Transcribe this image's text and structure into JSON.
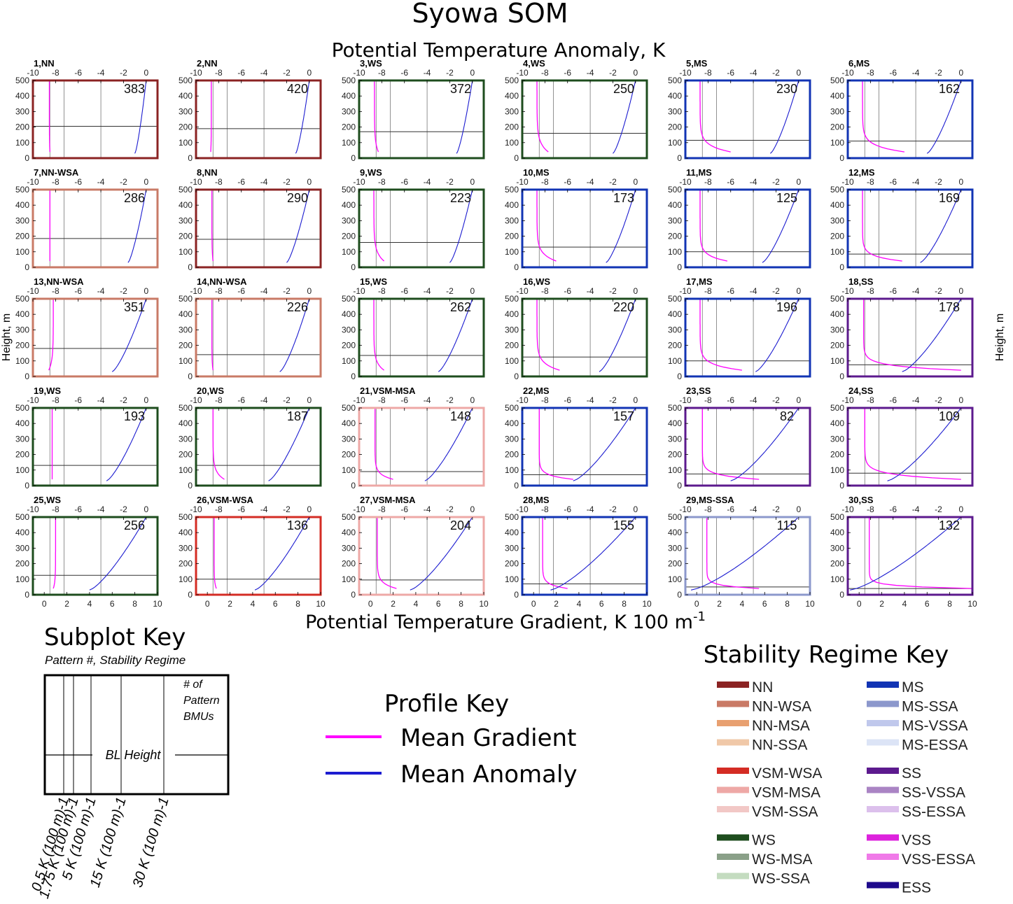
{
  "title": "Syowa SOM",
  "top_axis_title": "Potential Temperature Anomaly, K",
  "bottom_axis_title": "Potential Temperature Gradient, K 100 m",
  "bottom_axis_exponent": "-1",
  "left_axis_title": "Height, m",
  "right_axis_title": "Height, m",
  "colors": {
    "NN": "#8b2323",
    "NN-WSA": "#c97a66",
    "VSM-WSA": "#d42c24",
    "VSM-MSA": "#eea8a6",
    "WS": "#1e4d1e",
    "MS": "#1234b4",
    "MS-SSA": "#8c98cc",
    "SS": "#5c1a8e",
    "gradient": "#ff00ff",
    "anomaly": "#1c1cd0"
  },
  "chart_data": {
    "type": "line",
    "xlabel_top": "Potential Temperature Anomaly, K",
    "xlabel_bottom": "Potential Temperature Gradient, K 100 m-1",
    "ylabel": "Height, m",
    "ylim": [
      0,
      500
    ],
    "yticks": [
      "0",
      "100",
      "200",
      "300",
      "400",
      "500"
    ],
    "top_xlim": [
      -10,
      1
    ],
    "top_xticks": [
      "-10",
      "-8",
      "-6",
      "-4",
      "-2",
      "0"
    ],
    "bottom_xlim": [
      -1,
      10
    ],
    "bottom_xticks": [
      "0",
      "2",
      "4",
      "6",
      "8",
      "10"
    ],
    "reference_gradients": [
      0.5,
      1.75,
      5
    ],
    "panels": [
      {
        "label": "1,NN",
        "regime": "NN",
        "count": "383",
        "bl": 205,
        "grad_surface": 0.5,
        "grad_aloft": 0.45,
        "anom_surface": -1.0,
        "anom_top": 0.0
      },
      {
        "label": "2,NN",
        "regime": "NN",
        "count": "420",
        "bl": 190,
        "grad_surface": 0.3,
        "grad_aloft": 0.35,
        "anom_surface": -1.2,
        "anom_top": 0.0
      },
      {
        "label": "3,WS",
        "regime": "WS",
        "count": "372",
        "bl": 170,
        "grad_surface": 0.7,
        "grad_aloft": 0.35,
        "anom_surface": -1.4,
        "anom_top": 0.0
      },
      {
        "label": "4,WS",
        "regime": "WS",
        "count": "250",
        "bl": 160,
        "grad_surface": 1.3,
        "grad_aloft": 0.3,
        "anom_surface": -2.0,
        "anom_top": 0.0
      },
      {
        "label": "5,MS",
        "regime": "MS",
        "count": "230",
        "bl": 115,
        "grad_surface": 3.0,
        "grad_aloft": 0.3,
        "anom_surface": -2.5,
        "anom_top": 0.0
      },
      {
        "label": "6,MS",
        "regime": "MS",
        "count": "162",
        "bl": 110,
        "grad_surface": 4.0,
        "grad_aloft": 0.3,
        "anom_surface": -3.0,
        "anom_top": 0.0
      },
      {
        "label": "7,NN-WSA",
        "regime": "NN-WSA",
        "count": "286",
        "bl": 185,
        "grad_surface": 0.5,
        "grad_aloft": 0.5,
        "anom_surface": -1.6,
        "anom_top": 0.0
      },
      {
        "label": "8,NN",
        "regime": "NN",
        "count": "290",
        "bl": 180,
        "grad_surface": 0.5,
        "grad_aloft": 0.4,
        "anom_surface": -2.0,
        "anom_top": 0.0
      },
      {
        "label": "9,WS",
        "regime": "WS",
        "count": "223",
        "bl": 160,
        "grad_surface": 1.2,
        "grad_aloft": 0.3,
        "anom_surface": -2.0,
        "anom_top": 0.0
      },
      {
        "label": "10,MS",
        "regime": "MS",
        "count": "173",
        "bl": 130,
        "grad_surface": 2.0,
        "grad_aloft": 0.3,
        "anom_surface": -2.6,
        "anom_top": 0.0
      },
      {
        "label": "11,MS",
        "regime": "MS",
        "count": "125",
        "bl": 100,
        "grad_surface": 2.7,
        "grad_aloft": 0.3,
        "anom_surface": -3.2,
        "anom_top": 0.0
      },
      {
        "label": "12,MS",
        "regime": "MS",
        "count": "169",
        "bl": 85,
        "grad_surface": 3.8,
        "grad_aloft": 0.3,
        "anom_surface": -3.6,
        "anom_top": 0.0
      },
      {
        "label": "13,NN-WSA",
        "regime": "NN-WSA",
        "count": "351",
        "bl": 180,
        "grad_surface": 0.4,
        "grad_aloft": 0.8,
        "anom_surface": -3.0,
        "anom_top": 0.0
      },
      {
        "label": "14,NN-WSA",
        "regime": "NN-WSA",
        "count": "226",
        "bl": 140,
        "grad_surface": 0.5,
        "grad_aloft": 0.4,
        "anom_surface": -2.6,
        "anom_top": 0.0
      },
      {
        "label": "15,WS",
        "regime": "WS",
        "count": "262",
        "bl": 135,
        "grad_surface": 1.2,
        "grad_aloft": 0.3,
        "anom_surface": -3.0,
        "anom_top": 0.0
      },
      {
        "label": "16,WS",
        "regime": "WS",
        "count": "220",
        "bl": 125,
        "grad_surface": 2.3,
        "grad_aloft": 0.3,
        "anom_surface": -3.2,
        "anom_top": 0.0
      },
      {
        "label": "17,MS",
        "regime": "MS",
        "count": "196",
        "bl": 100,
        "grad_surface": 4.0,
        "grad_aloft": 0.3,
        "anom_surface": -3.8,
        "anom_top": 0.0
      },
      {
        "label": "18,SS",
        "regime": "SS",
        "count": "178",
        "bl": 75,
        "grad_surface": 9.0,
        "grad_aloft": 0.4,
        "anom_surface": -5.2,
        "anom_top": 0.0
      },
      {
        "label": "19,WS",
        "regime": "WS",
        "count": "193",
        "bl": 130,
        "grad_surface": 0.7,
        "grad_aloft": 0.7,
        "anom_surface": -3.5,
        "anom_top": 0.0
      },
      {
        "label": "20,WS",
        "regime": "WS",
        "count": "187",
        "bl": 130,
        "grad_surface": 1.5,
        "grad_aloft": 0.5,
        "anom_surface": -3.6,
        "anom_top": 0.0
      },
      {
        "label": "21,VSM-MSA",
        "regime": "VSM-MSA",
        "count": "148",
        "bl": 90,
        "grad_surface": 2.0,
        "grad_aloft": 0.4,
        "anom_surface": -4.2,
        "anom_top": 0.0
      },
      {
        "label": "22,MS",
        "regime": "MS",
        "count": "157",
        "bl": 70,
        "grad_surface": 3.5,
        "grad_aloft": 0.5,
        "anom_surface": -5.5,
        "anom_top": 0.0
      },
      {
        "label": "23,SS",
        "regime": "SS",
        "count": "82",
        "bl": 75,
        "grad_surface": 5.5,
        "grad_aloft": 0.5,
        "anom_surface": -6.0,
        "anom_top": 0.0
      },
      {
        "label": "24,SS",
        "regime": "SS",
        "count": "109",
        "bl": 80,
        "grad_surface": 9.0,
        "grad_aloft": 0.5,
        "anom_surface": -6.5,
        "anom_top": 0.0
      },
      {
        "label": "25,WS",
        "regime": "WS",
        "count": "256",
        "bl": 125,
        "grad_surface": 0.8,
        "grad_aloft": 1.0,
        "anom_surface": -5.0,
        "anom_top": 0.0
      },
      {
        "label": "26,VSM-WSA",
        "regime": "VSM-WSA",
        "count": "136",
        "bl": 100,
        "grad_surface": 0.8,
        "grad_aloft": 0.6,
        "anom_surface": -4.8,
        "anom_top": 0.0
      },
      {
        "label": "27,VSM-MSA",
        "regime": "VSM-MSA",
        "count": "204",
        "bl": 95,
        "grad_surface": 2.3,
        "grad_aloft": 0.6,
        "anom_surface": -5.5,
        "anom_top": 0.0
      },
      {
        "label": "28,MS",
        "regime": "MS",
        "count": "155",
        "bl": 70,
        "grad_surface": 3.0,
        "grad_aloft": 0.8,
        "anom_surface": -7.5,
        "anom_top": 0.0
      },
      {
        "label": "29,MS-SSA",
        "regime": "MS-SSA",
        "count": "115",
        "bl": 50,
        "grad_surface": 5.5,
        "grad_aloft": 0.9,
        "anom_surface": -9.5,
        "anom_top": 0.0
      },
      {
        "label": "30,SS",
        "regime": "SS",
        "count": "132",
        "bl": 40,
        "grad_surface": 10.0,
        "grad_aloft": 0.9,
        "anom_surface": -9.8,
        "anom_top": 0.0
      }
    ]
  },
  "subplot_key": {
    "title": "Subplot Key",
    "subtitle": "Pattern #, Stability Regime",
    "count_label_1": "# of",
    "count_label_2": "Pattern",
    "count_label_3": "BMUs",
    "bl_label": "BL Height",
    "reference_labels": [
      "0.5 K (100 m)-1",
      "1.75 K (100 m)-1",
      "5 K (100 m)-1",
      "15 K (100 m)-1",
      "30 K (100 m)-1"
    ]
  },
  "profile_key": {
    "title": "Profile Key",
    "gradient_label": "Mean Gradient",
    "anomaly_label": "Mean Anomaly"
  },
  "stability_key": {
    "title": "Stability Regime Key",
    "column1": [
      [
        {
          "name": "NN",
          "color": "#8b2323"
        },
        {
          "name": "NN-WSA",
          "color": "#c97a66"
        },
        {
          "name": "NN-MSA",
          "color": "#e8a070"
        },
        {
          "name": "NN-SSA",
          "color": "#f0c8a8"
        }
      ],
      [
        {
          "name": "VSM-WSA",
          "color": "#d42c24"
        },
        {
          "name": "VSM-MSA",
          "color": "#eea8a6"
        },
        {
          "name": "VSM-SSA",
          "color": "#f2c8c6"
        }
      ],
      [
        {
          "name": "WS",
          "color": "#1e4d1e"
        },
        {
          "name": "WS-MSA",
          "color": "#8aa088"
        },
        {
          "name": "WS-SSA",
          "color": "#c4dcc0"
        }
      ]
    ],
    "column2": [
      [
        {
          "name": "MS",
          "color": "#1234b4"
        },
        {
          "name": "MS-SSA",
          "color": "#8c98cc"
        },
        {
          "name": "MS-VSSA",
          "color": "#c0c8ec"
        },
        {
          "name": "MS-ESSA",
          "color": "#dce4f6"
        }
      ],
      [
        {
          "name": "SS",
          "color": "#5c1a8e"
        },
        {
          "name": "SS-VSSA",
          "color": "#aa84c4"
        },
        {
          "name": "SS-ESSA",
          "color": "#dcc0ec"
        }
      ],
      [
        {
          "name": "VSS",
          "color": "#dd22dd"
        },
        {
          "name": "VSS-ESSA",
          "color": "#f07ae8"
        }
      ],
      [
        {
          "name": "ESS",
          "color": "#1e0a8c"
        }
      ]
    ]
  }
}
